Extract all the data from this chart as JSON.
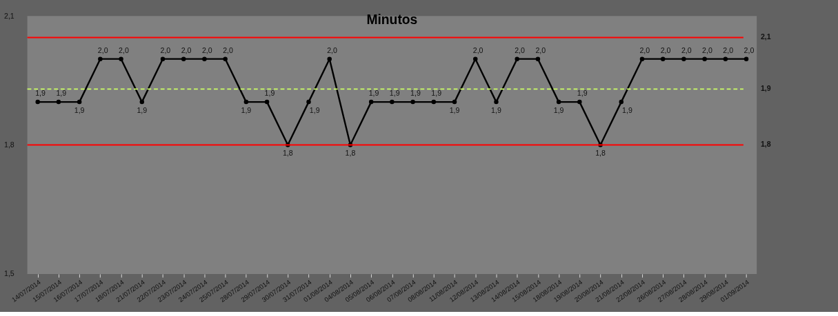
{
  "chart_data": {
    "type": "line",
    "title": "Minutos",
    "categories": [
      "14/07/2014",
      "15/07/2014",
      "16/07/2014",
      "17/07/2014",
      "18/07/2014",
      "21/07/2014",
      "22/07/2014",
      "23/07/2014",
      "24/07/2014",
      "25/07/2014",
      "28/07/2014",
      "29/07/2014",
      "30/07/2014",
      "31/07/2014",
      "01/08/2014",
      "04/08/2014",
      "05/08/2014",
      "06/08/2014",
      "07/08/2014",
      "08/08/2014",
      "11/08/2014",
      "12/08/2014",
      "13/08/2014",
      "14/08/2014",
      "15/08/2014",
      "18/08/2014",
      "19/08/2014",
      "20/08/2014",
      "21/08/2014",
      "22/08/2014",
      "26/08/2014",
      "27/08/2014",
      "28/08/2014",
      "29/08/2014",
      "01/09/2014"
    ],
    "series": [
      {
        "color": "#000000",
        "values": [
          1.9,
          1.9,
          1.9,
          2.0,
          2.0,
          1.9,
          2.0,
          2.0,
          2.0,
          2.0,
          1.9,
          1.9,
          1.8,
          1.9,
          2.0,
          1.8,
          1.9,
          1.9,
          1.9,
          1.9,
          1.9,
          2.0,
          1.9,
          2.0,
          2.0,
          1.9,
          1.9,
          1.8,
          1.9,
          2.0,
          2.0,
          2.0,
          2.0,
          2.0,
          2.0
        ],
        "value_labels": [
          "1,9",
          "1,9",
          "1,9",
          "2,0",
          "2,0",
          "1,9",
          "2,0",
          "2,0",
          "2,0",
          "2,0",
          "1,9",
          "1,9",
          "1,8",
          "1,9",
          "2,0",
          "1,8",
          "1,9",
          "1,9",
          "1,9",
          "1,9",
          "1,9",
          "2,0",
          "1,9",
          "2,0",
          "2,0",
          "1,9",
          "1,9",
          "1,8",
          "1,9",
          "2,0",
          "2,0",
          "2,0",
          "2,0",
          "2,0",
          "2,0"
        ]
      }
    ],
    "ylim": [
      1.5,
      2.1
    ],
    "yticks": [
      {
        "value": 1.5,
        "label": "1,5"
      },
      {
        "value": 1.8,
        "label": "1,8"
      },
      {
        "value": 2.1,
        "label": "2,1"
      }
    ],
    "ref_lines": [
      {
        "axis": "y",
        "value": 2.05,
        "label": "2,1",
        "color": "#ff0000",
        "line_style": "solid"
      },
      {
        "axis": "y",
        "value": 1.93,
        "label": "1,9",
        "color": "#ccff66",
        "line_style": "dashed"
      },
      {
        "axis": "y",
        "value": 1.8,
        "label": "1,8",
        "color": "#ff0000",
        "line_style": "solid"
      }
    ],
    "marker": "circle",
    "line_style": "solid",
    "grid": false
  }
}
